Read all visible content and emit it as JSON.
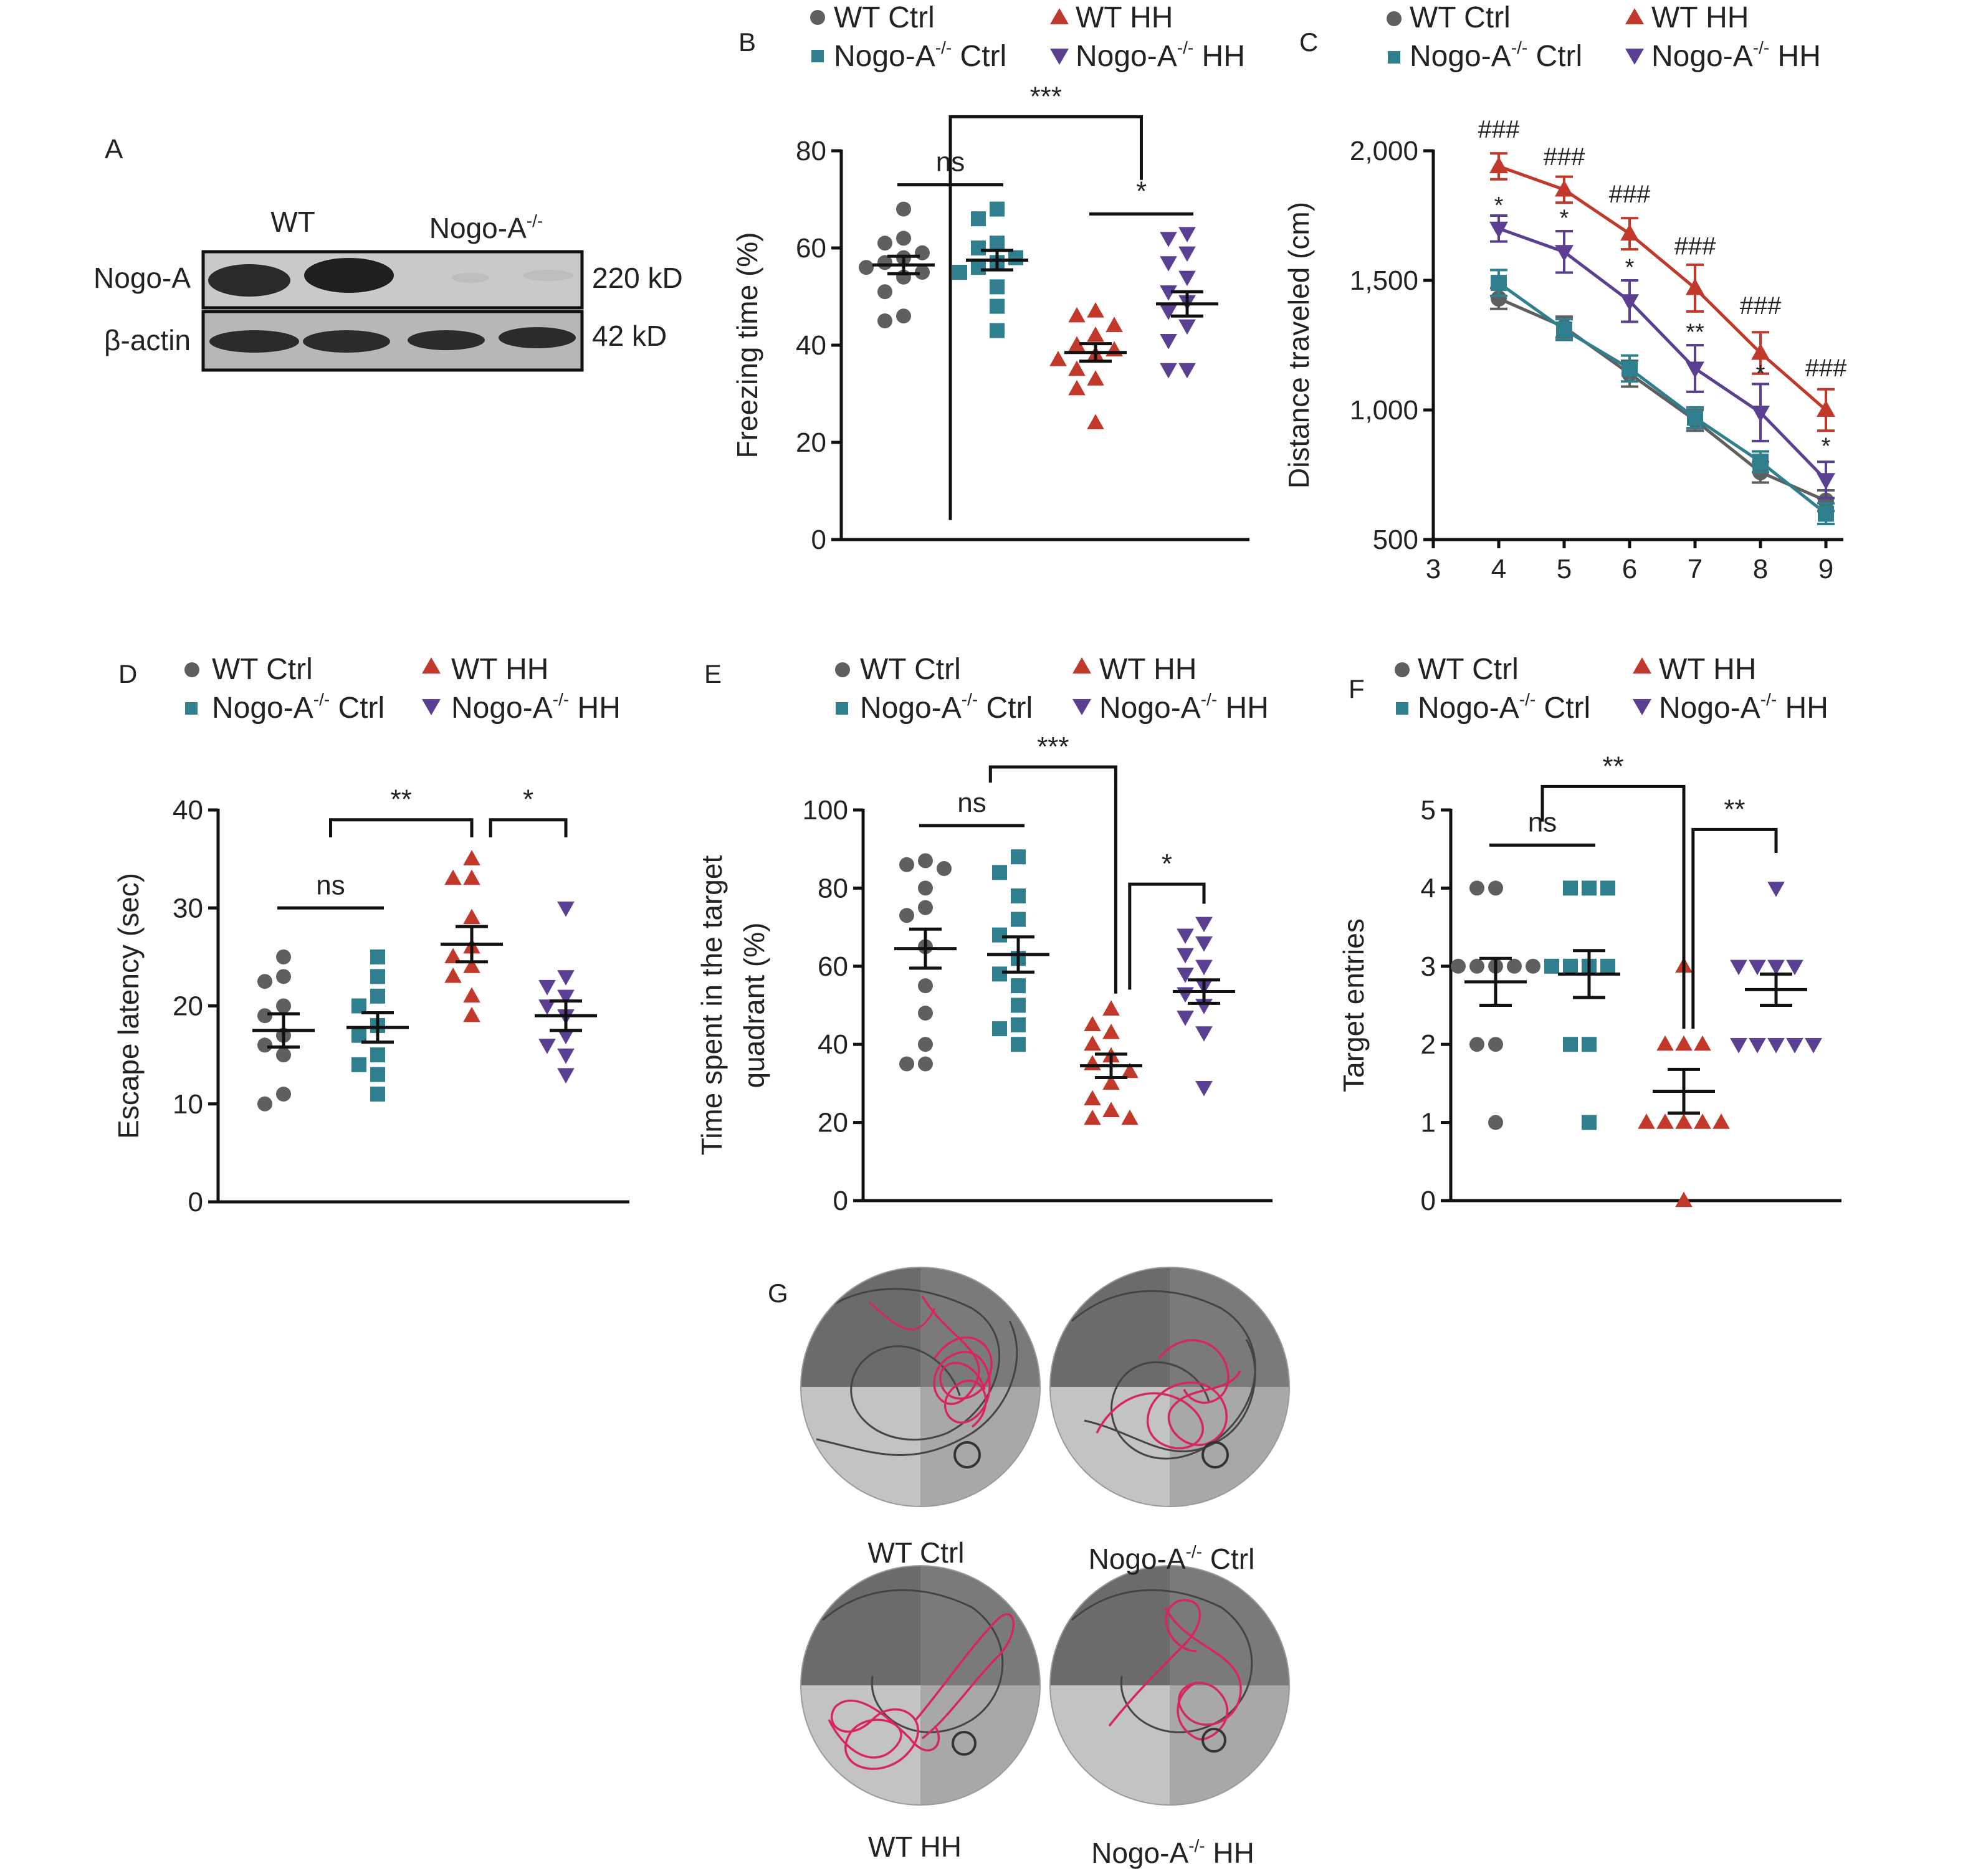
{
  "colors": {
    "wt_ctrl": "#5f5f5f",
    "nogo_ctrl": "#2f7f8f",
    "wt_hh": "#c0392b",
    "nogo_hh": "#5b3f93",
    "axis": "#111111",
    "track_red": "#d6265c",
    "track_gray": "#555555"
  },
  "legend": {
    "wt_ctrl": "WT Ctrl",
    "wt_hh": "WT HH",
    "nogo_ctrl": "Nogo-A",
    "nogo_hh": "Nogo-A",
    "sup": "-/-",
    "ctrl_suffix": " Ctrl",
    "hh_suffix": " HH"
  },
  "panel_a": {
    "letter": "A",
    "lane_wt": "WT",
    "lane_ko": "Nogo-A",
    "lane_ko_sup": "-/-",
    "row1": "Nogo-A",
    "row2": "β-actin",
    "size1": "220 kD",
    "size2": "42 kD"
  },
  "chart_data": [
    {
      "id": "B",
      "type": "scatter",
      "letter": "B",
      "ylabel": "Freezing time (%)",
      "ylim": [
        0,
        80
      ],
      "yticks": [
        "0",
        "20",
        "40",
        "60",
        "80"
      ],
      "groups": [
        {
          "name": "WT Ctrl",
          "mean": 56.5,
          "sem": 1.8,
          "values": [
            68,
            62,
            61,
            59,
            58,
            57,
            56,
            55,
            54,
            51,
            46,
            45
          ]
        },
        {
          "name": "Nogo-A-/- Ctrl",
          "mean": 57.5,
          "sem": 2.0,
          "values": [
            68,
            66,
            61,
            60,
            58,
            57,
            56,
            55,
            52,
            48,
            43
          ]
        },
        {
          "name": "WT HH",
          "mean": 38.5,
          "sem": 1.8,
          "values": [
            47,
            46,
            44,
            42,
            40,
            39,
            38,
            37,
            35,
            33,
            31,
            24
          ]
        },
        {
          "name": "Nogo-A-/- HH",
          "mean": 48.5,
          "sem": 2.5,
          "values": [
            63,
            62,
            59,
            57,
            54,
            51,
            49,
            47,
            44,
            41,
            35,
            35
          ]
        }
      ],
      "annotations": [
        {
          "from": 0,
          "to": 1,
          "text": "ns",
          "level": 73,
          "style": "line"
        },
        {
          "from": 2,
          "to": 3,
          "text": "*",
          "level": 67,
          "style": "line"
        },
        {
          "from": 0.5,
          "to": 2.5,
          "text": "***",
          "level": 87,
          "style": "bracket",
          "drop": 4,
          "dropB": 74
        }
      ]
    },
    {
      "id": "C",
      "type": "line",
      "letter": "C",
      "ylabel": "Distance traveled (cm)",
      "ylim": [
        500,
        2000
      ],
      "yticks": [
        "500",
        "1,000",
        "1,500",
        "2,000"
      ],
      "xlim": [
        3,
        9
      ],
      "xticks": [
        "3",
        "4",
        "5",
        "6",
        "7",
        "8",
        "9"
      ],
      "x": [
        4,
        5,
        6,
        7,
        8,
        9
      ],
      "series": [
        {
          "name": "WT Ctrl",
          "values": [
            1430,
            1320,
            1140,
            960,
            760,
            650
          ],
          "errors": [
            40,
            40,
            50,
            40,
            40,
            40
          ]
        },
        {
          "name": "Nogo-A-/- Ctrl",
          "values": [
            1490,
            1310,
            1160,
            970,
            800,
            600
          ],
          "errors": [
            50,
            40,
            50,
            40,
            40,
            40
          ]
        },
        {
          "name": "WT HH",
          "values": [
            1940,
            1850,
            1680,
            1470,
            1220,
            1000
          ],
          "errors": [
            50,
            50,
            60,
            90,
            80,
            80
          ]
        },
        {
          "name": "Nogo-A-/- HH",
          "values": [
            1700,
            1610,
            1420,
            1160,
            990,
            730
          ],
          "errors": [
            50,
            80,
            80,
            90,
            110,
            70
          ]
        }
      ],
      "annotations": [
        {
          "x": 4,
          "y": 2050,
          "text": "###"
        },
        {
          "x": 5,
          "y": 1945,
          "text": "###"
        },
        {
          "x": 6,
          "y": 1800,
          "text": "###"
        },
        {
          "x": 7,
          "y": 1600,
          "text": "###"
        },
        {
          "x": 8,
          "y": 1370,
          "text": "###"
        },
        {
          "x": 9,
          "y": 1130,
          "text": "###"
        },
        {
          "x": 4,
          "y": 1760,
          "text": "*"
        },
        {
          "x": 5,
          "y": 1710,
          "text": "*"
        },
        {
          "x": 6,
          "y": 1520,
          "text": "*"
        },
        {
          "x": 7,
          "y": 1270,
          "text": "**"
        },
        {
          "x": 8,
          "y": 1110,
          "text": "*"
        },
        {
          "x": 9,
          "y": 830,
          "text": "*"
        }
      ]
    },
    {
      "id": "D",
      "type": "scatter",
      "letter": "D",
      "ylabel": "Escape latency (sec)",
      "ylim": [
        0,
        40
      ],
      "yticks": [
        "0",
        "10",
        "20",
        "30",
        "40"
      ],
      "groups": [
        {
          "name": "WT Ctrl",
          "mean": 17.5,
          "sem": 1.7,
          "values": [
            25,
            23,
            22.5,
            20,
            19,
            17,
            16,
            15,
            11,
            10
          ]
        },
        {
          "name": "Nogo-A-/- Ctrl",
          "mean": 17.8,
          "sem": 1.5,
          "values": [
            25,
            23,
            21,
            20,
            18,
            17,
            15,
            14,
            13,
            11
          ]
        },
        {
          "name": "WT HH",
          "mean": 26.3,
          "sem": 1.8,
          "values": [
            35,
            33,
            33,
            29,
            26,
            25,
            24,
            23,
            21,
            19
          ]
        },
        {
          "name": "Nogo-A-/- HH",
          "mean": 19.0,
          "sem": 1.5,
          "values": [
            30,
            23,
            22,
            21,
            20,
            19,
            17,
            16,
            15,
            13
          ]
        }
      ],
      "annotations": [
        {
          "from": 0,
          "to": 1,
          "text": "ns",
          "level": 30,
          "style": "line"
        },
        {
          "from": 0.5,
          "to": 2,
          "text": "**",
          "level": 39,
          "style": "bracket",
          "drop": 37.2,
          "dropB": 37.2
        },
        {
          "from": 2.2,
          "to": 3,
          "text": "*",
          "level": 39,
          "style": "bracket",
          "drop": 37.2,
          "dropB": 37.2
        }
      ]
    },
    {
      "id": "E",
      "type": "scatter",
      "letter": "E",
      "ylabel": "Time spent in the target",
      "ylabel2": "quadrant (%)",
      "ylim": [
        0,
        100
      ],
      "yticks": [
        "0",
        "20",
        "40",
        "60",
        "80",
        "100"
      ],
      "groups": [
        {
          "name": "WT Ctrl",
          "mean": 64.5,
          "sem": 5.0,
          "values": [
            87,
            86,
            85,
            80,
            75,
            73,
            65,
            55,
            48,
            40,
            35,
            35
          ]
        },
        {
          "name": "Nogo-A-/- Ctrl",
          "mean": 63.0,
          "sem": 4.5,
          "values": [
            88,
            84,
            78,
            72,
            68,
            62,
            58,
            55,
            50,
            45,
            44,
            40
          ]
        },
        {
          "name": "WT HH",
          "mean": 34.5,
          "sem": 3.0,
          "values": [
            49,
            45,
            43,
            40,
            37,
            35,
            33,
            30,
            26,
            23,
            21,
            21
          ]
        },
        {
          "name": "Nogo-A-/- HH",
          "mean": 53.5,
          "sem": 3.0,
          "values": [
            71,
            68,
            66,
            63,
            60,
            58,
            55,
            53,
            50,
            47,
            43,
            29
          ]
        }
      ],
      "annotations": [
        {
          "from": 0,
          "to": 1,
          "text": "ns",
          "level": 96,
          "style": "line"
        },
        {
          "from": 0.7,
          "to": 2.05,
          "text": "***",
          "level": 111,
          "style": "bracket",
          "drop": 107,
          "dropB": 53
        },
        {
          "from": 2.2,
          "to": 3,
          "text": "*",
          "level": 81,
          "style": "bracket",
          "drop": 54,
          "dropB": 76
        }
      ]
    },
    {
      "id": "F",
      "type": "scatter",
      "letter": "F",
      "ylabel": "Target entries",
      "ylim": [
        0,
        5
      ],
      "yticks": [
        "0",
        "1",
        "2",
        "3",
        "4",
        "5"
      ],
      "groups": [
        {
          "name": "WT Ctrl",
          "mean": 2.8,
          "sem": 0.3,
          "values": [
            4,
            4,
            3,
            3,
            3,
            3,
            3,
            2,
            2,
            1
          ]
        },
        {
          "name": "Nogo-A-/- Ctrl",
          "mean": 2.9,
          "sem": 0.3,
          "values": [
            4,
            4,
            4,
            3,
            3,
            3,
            3,
            2,
            2,
            1
          ]
        },
        {
          "name": "WT HH",
          "mean": 1.4,
          "sem": 0.28,
          "values": [
            3,
            2,
            2,
            2,
            1,
            1,
            1,
            1,
            1,
            0
          ]
        },
        {
          "name": "Nogo-A-/- HH",
          "mean": 2.7,
          "sem": 0.2,
          "values": [
            4,
            3,
            3,
            3,
            3,
            2,
            2,
            2,
            2,
            2
          ]
        }
      ],
      "annotations": [
        {
          "from": 0,
          "to": 1,
          "text": "ns",
          "level": 4.55,
          "style": "line"
        },
        {
          "from": 0.5,
          "to": 2,
          "text": "**",
          "level": 5.3,
          "style": "bracket",
          "drop": 4.85,
          "dropB": 2.2
        },
        {
          "from": 2.1,
          "to": 3,
          "text": "**",
          "level": 4.75,
          "style": "bracket",
          "drop": 2.2,
          "dropB": 4.45
        }
      ]
    }
  ],
  "panel_g": {
    "letter": "G",
    "labels": [
      "WT Ctrl",
      "Nogo-A",
      "WT HH",
      "Nogo-A"
    ],
    "sup": "-/-",
    "suffix2": " Ctrl",
    "suffix4": " HH"
  }
}
